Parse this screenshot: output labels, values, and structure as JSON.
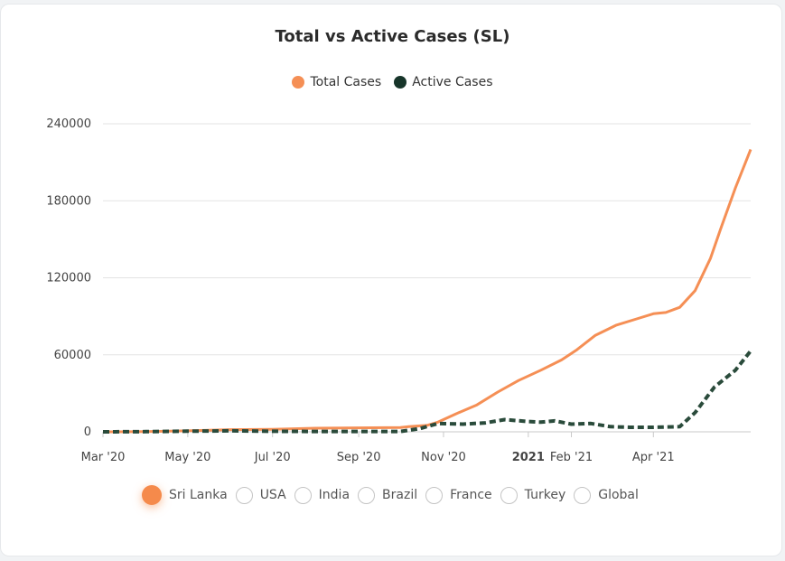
{
  "colors": {
    "total": "#f58f55",
    "active": "#2a4b3b",
    "active_legend": "#17352a",
    "grid": "#e3e3e3"
  },
  "chart_data": {
    "type": "line",
    "title": "Total vs Active Cases (SL)",
    "ylim": [
      0,
      240000
    ],
    "yticks": [
      {
        "value": 0,
        "label": "0"
      },
      {
        "value": 60000,
        "label": "60000"
      },
      {
        "value": 120000,
        "label": "120000"
      },
      {
        "value": 180000,
        "label": "180000"
      },
      {
        "value": 240000,
        "label": "240000"
      }
    ],
    "xlim": [
      "2020-03-01",
      "2021-06-10"
    ],
    "xticks": [
      {
        "date": "2020-03-01",
        "label": "Mar '20",
        "bold": false
      },
      {
        "date": "2020-05-01",
        "label": "May '20",
        "bold": false
      },
      {
        "date": "2020-07-01",
        "label": "Jul '20",
        "bold": false
      },
      {
        "date": "2020-09-01",
        "label": "Sep '20",
        "bold": false
      },
      {
        "date": "2020-11-01",
        "label": "Nov '20",
        "bold": false
      },
      {
        "date": "2021-01-01",
        "label": "2021",
        "bold": true
      },
      {
        "date": "2021-02-01",
        "label": "Feb '21",
        "bold": false
      },
      {
        "date": "2021-04-01",
        "label": "Apr '21",
        "bold": false
      }
    ],
    "grid": true,
    "legend_position": "top-center",
    "series": [
      {
        "name": "Total Cases",
        "style": "solid",
        "points": [
          [
            "2020-03-01",
            0
          ],
          [
            "2020-04-01",
            150
          ],
          [
            "2020-05-01",
            800
          ],
          [
            "2020-06-01",
            1700
          ],
          [
            "2020-07-01",
            2000
          ],
          [
            "2020-08-01",
            2800
          ],
          [
            "2020-09-01",
            3100
          ],
          [
            "2020-10-01",
            3400
          ],
          [
            "2020-10-07",
            4000
          ],
          [
            "2020-10-20",
            5000
          ],
          [
            "2020-10-28",
            7500
          ],
          [
            "2020-11-10",
            14000
          ],
          [
            "2020-11-25",
            21000
          ],
          [
            "2020-12-10",
            31000
          ],
          [
            "2020-12-25",
            40000
          ],
          [
            "2021-01-10",
            48000
          ],
          [
            "2021-01-25",
            56000
          ],
          [
            "2021-02-05",
            64000
          ],
          [
            "2021-02-18",
            75000
          ],
          [
            "2021-03-05",
            83000
          ],
          [
            "2021-03-20",
            88000
          ],
          [
            "2021-04-01",
            92000
          ],
          [
            "2021-04-10",
            93000
          ],
          [
            "2021-04-20",
            97000
          ],
          [
            "2021-05-01",
            110000
          ],
          [
            "2021-05-12",
            135000
          ],
          [
            "2021-05-20",
            160000
          ],
          [
            "2021-05-30",
            190000
          ],
          [
            "2021-06-10",
            220000
          ]
        ]
      },
      {
        "name": "Active Cases",
        "style": "dashed",
        "points": [
          [
            "2020-03-01",
            0
          ],
          [
            "2020-04-01",
            150
          ],
          [
            "2020-05-01",
            500
          ],
          [
            "2020-06-01",
            800
          ],
          [
            "2020-07-01",
            400
          ],
          [
            "2020-08-01",
            300
          ],
          [
            "2020-09-01",
            250
          ],
          [
            "2020-10-01",
            250
          ],
          [
            "2020-10-15",
            2500
          ],
          [
            "2020-10-28",
            6500
          ],
          [
            "2020-11-15",
            6000
          ],
          [
            "2020-12-01",
            7000
          ],
          [
            "2020-12-15",
            9500
          ],
          [
            "2021-01-01",
            8000
          ],
          [
            "2021-01-10",
            7500
          ],
          [
            "2021-01-20",
            8500
          ],
          [
            "2021-02-01",
            6000
          ],
          [
            "2021-02-15",
            6500
          ],
          [
            "2021-03-01",
            4000
          ],
          [
            "2021-03-15",
            3500
          ],
          [
            "2021-04-01",
            3500
          ],
          [
            "2021-04-20",
            4000
          ],
          [
            "2021-05-01",
            15000
          ],
          [
            "2021-05-15",
            35000
          ],
          [
            "2021-05-30",
            48000
          ],
          [
            "2021-06-10",
            63000
          ]
        ]
      }
    ]
  },
  "legend": {
    "total_label": "Total Cases",
    "active_label": "Active Cases"
  },
  "countries": [
    {
      "label": "Sri Lanka",
      "selected": true
    },
    {
      "label": "USA",
      "selected": false
    },
    {
      "label": "India",
      "selected": false
    },
    {
      "label": "Brazil",
      "selected": false
    },
    {
      "label": "France",
      "selected": false
    },
    {
      "label": "Turkey",
      "selected": false
    },
    {
      "label": "Global",
      "selected": false
    }
  ]
}
